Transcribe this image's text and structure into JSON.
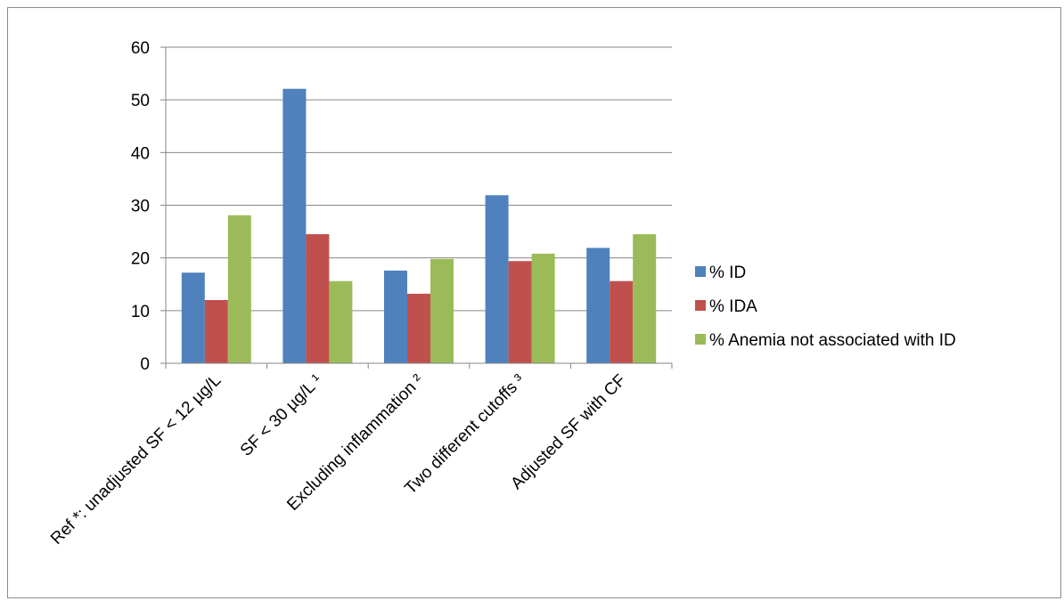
{
  "chart_data": {
    "type": "bar",
    "categories": [
      "Ref *: unadjusted SF < 12 µg/L",
      "SF < 30 µg/L ¹",
      "Excluding  inflammation ²",
      "Two different cutoffs ³",
      "Adjusted SF with CF"
    ],
    "series": [
      {
        "name": "% ID",
        "color": "#4f81bd",
        "values": [
          17.2,
          52.1,
          17.6,
          31.9,
          21.9
        ]
      },
      {
        "name": "% IDA",
        "color": "#c0504d",
        "values": [
          12.0,
          24.5,
          13.2,
          19.4,
          15.6
        ]
      },
      {
        "name": "% Anemia not associated with ID",
        "color": "#9bbb59",
        "values": [
          28.1,
          15.6,
          19.8,
          20.8,
          24.5
        ]
      }
    ],
    "yticks": [
      "0",
      "10",
      "20",
      "30",
      "40",
      "50",
      "60"
    ],
    "ylim": [
      0,
      60
    ],
    "grid": true,
    "legend_position": "right"
  }
}
